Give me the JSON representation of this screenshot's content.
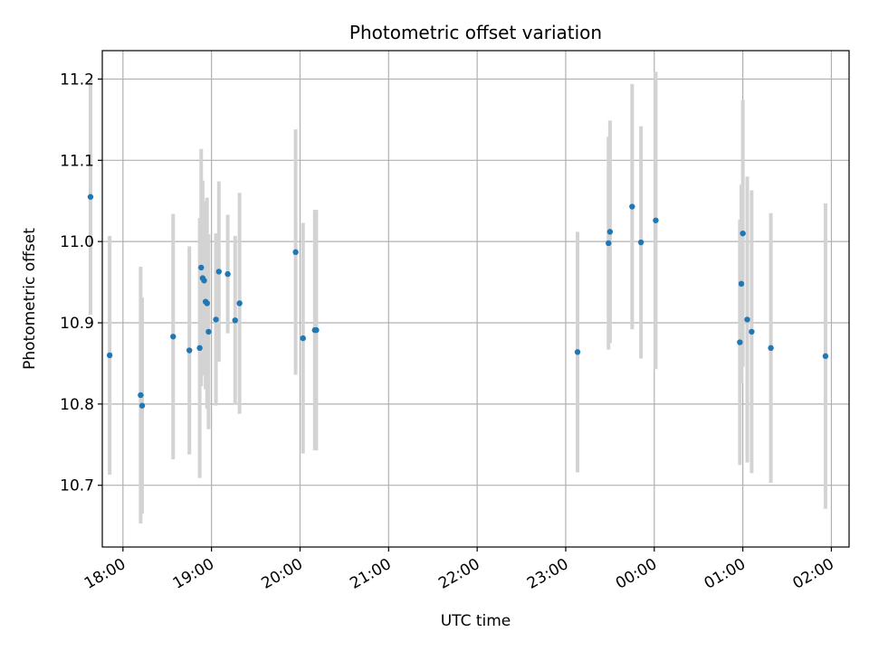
{
  "chart_data": {
    "type": "scatter",
    "title": "Photometric offset variation",
    "xlabel": "UTC time",
    "ylabel": "Photometric offset",
    "xlim": [
      "17:46",
      "02:12"
    ],
    "ylim": [
      10.624,
      11.235
    ],
    "xticks": [
      "18:00",
      "19:00",
      "20:00",
      "21:00",
      "22:00",
      "23:00",
      "00:00",
      "01:00",
      "02:00"
    ],
    "yticks": [
      "10.7",
      "10.8",
      "10.9",
      "11.0",
      "11.1",
      "11.2"
    ],
    "grid": true,
    "colors": {
      "point": "#1f77b4",
      "errorbar": "#d3d3d3",
      "grid": "#b0b0b0"
    },
    "points": [
      {
        "x": "17:38",
        "y": 11.055,
        "err": 0.145
      },
      {
        "x": "17:51",
        "y": 10.86,
        "err": 0.147
      },
      {
        "x": "18:12",
        "y": 10.811,
        "err": 0.158
      },
      {
        "x": "18:13",
        "y": 10.798,
        "err": 0.133
      },
      {
        "x": "18:34",
        "y": 10.883,
        "err": 0.151
      },
      {
        "x": "18:45",
        "y": 10.866,
        "err": 0.128
      },
      {
        "x": "18:52",
        "y": 10.869,
        "err": 0.16
      },
      {
        "x": "18:53",
        "y": 10.968,
        "err": 0.146
      },
      {
        "x": "18:54",
        "y": 10.955,
        "err": 0.12
      },
      {
        "x": "18:55",
        "y": 10.952,
        "err": 0.098
      },
      {
        "x": "18:56",
        "y": 10.926,
        "err": 0.108
      },
      {
        "x": "18:57",
        "y": 10.924,
        "err": 0.13
      },
      {
        "x": "18:58",
        "y": 10.889,
        "err": 0.12
      },
      {
        "x": "19:03",
        "y": 10.904,
        "err": 0.106
      },
      {
        "x": "19:05",
        "y": 10.963,
        "err": 0.111
      },
      {
        "x": "19:11",
        "y": 10.96,
        "err": 0.073
      },
      {
        "x": "19:16",
        "y": 10.903,
        "err": 0.104
      },
      {
        "x": "19:19",
        "y": 10.924,
        "err": 0.136
      },
      {
        "x": "19:57",
        "y": 10.987,
        "err": 0.151
      },
      {
        "x": "20:02",
        "y": 10.881,
        "err": 0.142
      },
      {
        "x": "20:10",
        "y": 10.891,
        "err": 0.148
      },
      {
        "x": "20:11",
        "y": 10.891,
        "err": 0.148
      },
      {
        "x": "23:08",
        "y": 10.864,
        "err": 0.148
      },
      {
        "x": "23:29",
        "y": 10.998,
        "err": 0.131
      },
      {
        "x": "23:30",
        "y": 11.012,
        "err": 0.137
      },
      {
        "x": "23:45",
        "y": 11.043,
        "err": 0.151
      },
      {
        "x": "23:51",
        "y": 10.999,
        "err": 0.143
      },
      {
        "x": "00:01",
        "y": 11.026,
        "err": 0.183
      },
      {
        "x": "00:58",
        "y": 10.876,
        "err": 0.151
      },
      {
        "x": "00:59",
        "y": 10.948,
        "err": 0.122
      },
      {
        "x": "01:00",
        "y": 11.01,
        "err": 0.164
      },
      {
        "x": "01:03",
        "y": 10.904,
        "err": 0.176
      },
      {
        "x": "01:06",
        "y": 10.889,
        "err": 0.174
      },
      {
        "x": "01:19",
        "y": 10.869,
        "err": 0.166
      },
      {
        "x": "01:56",
        "y": 10.859,
        "err": 0.188
      }
    ]
  }
}
